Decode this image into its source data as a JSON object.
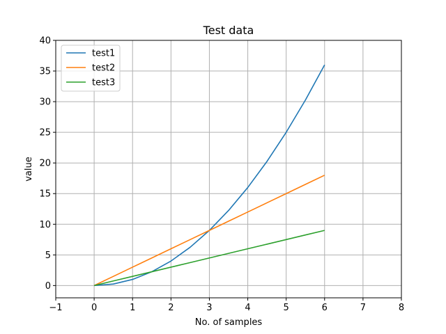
{
  "chart_data": {
    "type": "line",
    "title": "Test data",
    "xlabel": "No. of samples",
    "ylabel": "value",
    "xlim": [
      -1,
      8
    ],
    "ylim": [
      -2,
      40
    ],
    "xticks": [
      -1,
      0,
      1,
      2,
      3,
      4,
      5,
      6,
      7,
      8
    ],
    "yticks": [
      0,
      5,
      10,
      15,
      20,
      25,
      30,
      35,
      40
    ],
    "grid": true,
    "legend_position": "top-left",
    "x": [
      0,
      0.5,
      1,
      1.5,
      2,
      2.5,
      3,
      3.5,
      4,
      4.5,
      5,
      5.5,
      6
    ],
    "series": [
      {
        "name": "test1",
        "color": "#1f77b4",
        "values": [
          0,
          0.25,
          1,
          2.25,
          4,
          6.25,
          9,
          12.25,
          16,
          20.25,
          25,
          30.25,
          36
        ]
      },
      {
        "name": "test2",
        "color": "#ff7f0e",
        "values": [
          0,
          1.5,
          3,
          4.5,
          6,
          7.5,
          9,
          10.5,
          12,
          13.5,
          15,
          16.5,
          18
        ]
      },
      {
        "name": "test3",
        "color": "#2ca02c",
        "values": [
          0,
          0.75,
          1.5,
          2.25,
          3,
          3.75,
          4.5,
          5.25,
          6,
          6.75,
          7.5,
          8.25,
          9
        ]
      }
    ]
  }
}
